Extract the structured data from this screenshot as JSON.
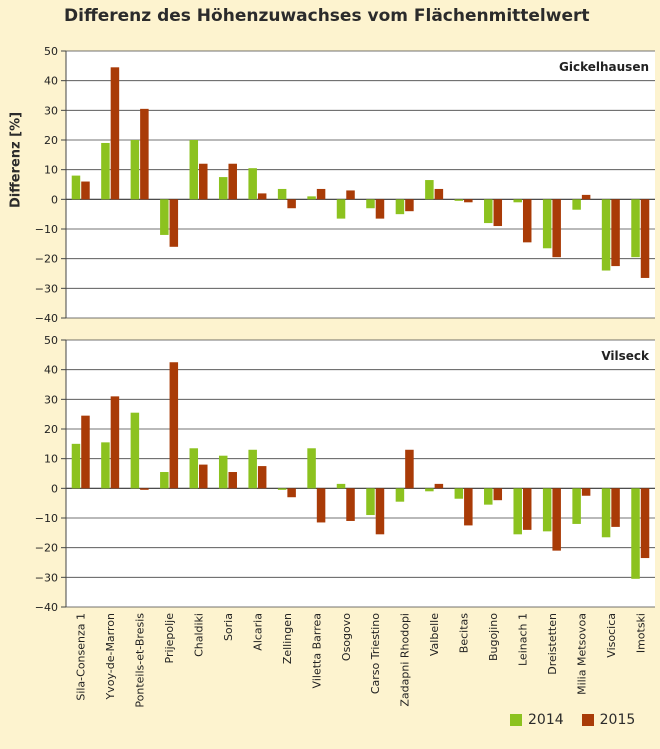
{
  "title": "Differenz des Höhenzuwachses vom Flächenmittelwert",
  "ylabel": "Differenz [%]",
  "colors": {
    "2014": "#8cc21f",
    "2015": "#a93b07"
  },
  "legend": [
    "2014",
    "2015"
  ],
  "chart_data": [
    {
      "type": "bar",
      "title": "Gickelhausen",
      "ylim": [
        -40,
        50
      ],
      "yticks": [
        -40,
        -30,
        -20,
        -10,
        0,
        10,
        20,
        30,
        40,
        50
      ],
      "grid": true,
      "categories": [
        "Sila-Consenza 1",
        "Yvoy-de-Marron",
        "Ponteils-et-Bresis",
        "Prijepolje",
        "Chaldiki",
        "Soria",
        "Alcaria",
        "Zellingen",
        "Viletta Barrea",
        "Osogovo",
        "Carso Triestino",
        "Zadapni Rhodopi",
        "Valbelle",
        "Becitas",
        "Bugojino",
        "Leinach 1",
        "Dreistetten",
        "Milia Metsovoa",
        "Visocica",
        "Imotski"
      ],
      "series": [
        {
          "name": "2014",
          "values": [
            8,
            19,
            20,
            -12,
            20,
            7.5,
            10.5,
            3.5,
            1,
            -6.5,
            -3,
            -5,
            6.5,
            -0.5,
            -8,
            -1,
            -16.5,
            -3.5,
            -24,
            -19.5
          ]
        },
        {
          "name": "2015",
          "values": [
            6,
            44.5,
            30.5,
            -16,
            12,
            12,
            2,
            -3,
            3.5,
            3,
            -6.5,
            -4,
            3.5,
            -1,
            -9,
            -14.5,
            -19.5,
            1.5,
            -22.5,
            -26.5
          ]
        }
      ]
    },
    {
      "type": "bar",
      "title": "Vilseck",
      "ylim": [
        -40,
        50
      ],
      "yticks": [
        -40,
        -30,
        -20,
        -10,
        0,
        10,
        20,
        30,
        40,
        50
      ],
      "grid": true,
      "categories": [
        "Sila-Consenza 1",
        "Yvoy-de-Marron",
        "Ponteils-et-Bresis",
        "Prijepolje",
        "Chaldiki",
        "Soria",
        "Alcaria",
        "Zellingen",
        "Viletta Barrea",
        "Osogovo",
        "Carso Triestino",
        "Zadapni Rhodopi",
        "Valbelle",
        "Becitas",
        "Bugojino",
        "Leinach 1",
        "Dreistetten",
        "Milia Metsovoa",
        "Visocica",
        "Imotski"
      ],
      "series": [
        {
          "name": "2014",
          "values": [
            15,
            15.5,
            25.5,
            5.5,
            13.5,
            11,
            13,
            -0.5,
            13.5,
            1.5,
            -9,
            -4.5,
            -1,
            -3.5,
            -5.5,
            -15.5,
            -14.5,
            -12,
            -16.5,
            -30.5
          ]
        },
        {
          "name": "2015",
          "values": [
            24.5,
            31,
            -0.5,
            42.5,
            8,
            5.5,
            7.5,
            -3,
            -11.5,
            -11,
            -15.5,
            13,
            1.5,
            -12.5,
            -4,
            -14,
            -21,
            -2.5,
            -13,
            -23.5
          ]
        }
      ]
    }
  ]
}
